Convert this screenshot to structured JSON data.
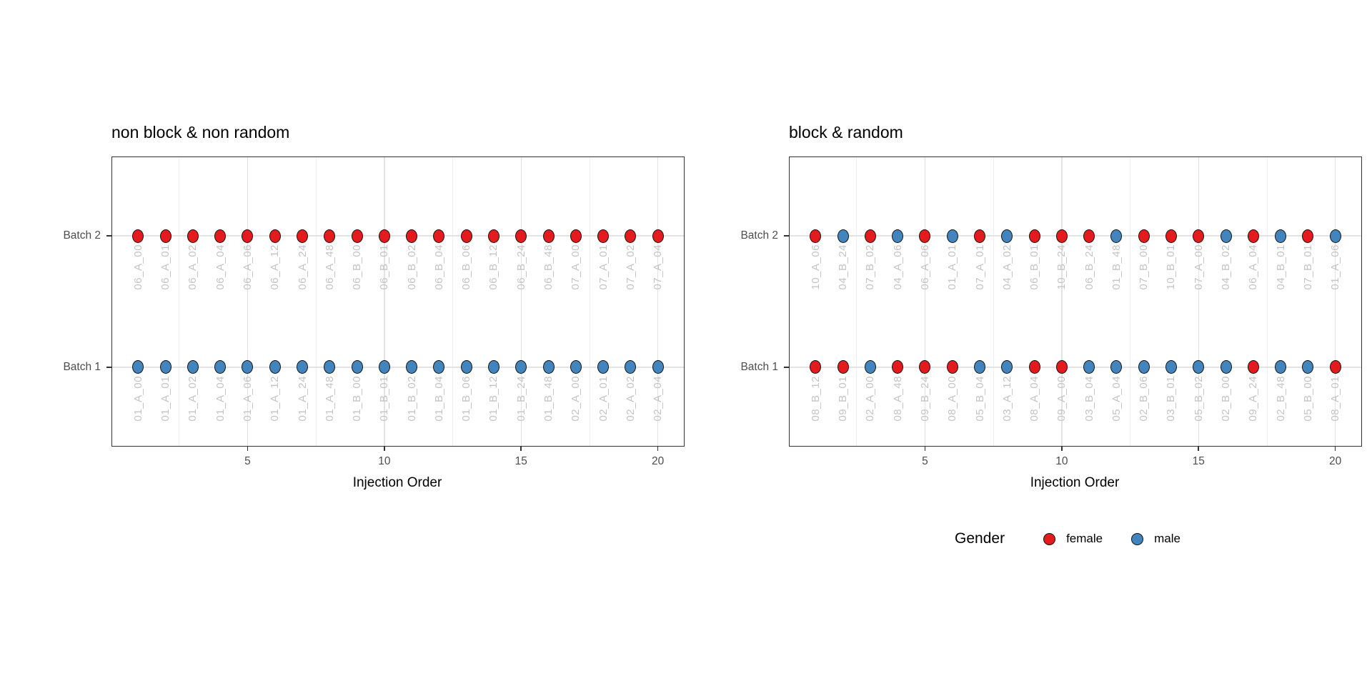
{
  "figure": {
    "background": "#ffffff",
    "colors": {
      "female": "#E41A1C",
      "male": "#4285BE",
      "sample_label": "#C4C4C4",
      "axis_text": "#4D4D4D",
      "axis_title": "#000000",
      "title_text": "#000000",
      "grid_major": "#E3E3E3",
      "grid_minor": "#EFEFEF",
      "panel_border": "#333333",
      "tick": "#333333",
      "point_outline": "#141414"
    },
    "x_axis": {
      "label": "Injection Order",
      "ticks": [
        5,
        10,
        15,
        20
      ]
    },
    "y_axis": {
      "categories": [
        "Batch 1",
        "Batch 2"
      ]
    },
    "legend": {
      "title": "Gender",
      "entries": [
        {
          "label": "female",
          "color_key": "female"
        },
        {
          "label": "male",
          "color_key": "male"
        }
      ]
    }
  },
  "chart_data": [
    {
      "type": "scatter",
      "title": "non block & non random",
      "xlabel": "Injection Order",
      "ylabel": "",
      "x_ticks": [
        5,
        10,
        15,
        20
      ],
      "x_minor_gridlines": [
        2.5,
        7.5,
        12.5,
        17.5
      ],
      "x_range": [
        1,
        20
      ],
      "y_categories": [
        "Batch 1",
        "Batch 2"
      ],
      "point_x_values": [
        1,
        2,
        3,
        4,
        5,
        6,
        7,
        8,
        9,
        10,
        11,
        12,
        13,
        14,
        15,
        16,
        17,
        18,
        19,
        20
      ],
      "rows": [
        {
          "y": "Batch 2",
          "sample_labels": [
            "06_A_00",
            "06_A_01",
            "06_A_02",
            "06_A_04",
            "06_A_06",
            "06_A_12",
            "06_A_24",
            "06_A_48",
            "06_B_00",
            "06_B_01",
            "06_B_02",
            "06_B_04",
            "06_B_06",
            "06_B_12",
            "06_B_24",
            "06_B_48",
            "07_A_00",
            "07_A_01",
            "07_A_02",
            "07_A_04"
          ],
          "genders": [
            "female",
            "female",
            "female",
            "female",
            "female",
            "female",
            "female",
            "female",
            "female",
            "female",
            "female",
            "female",
            "female",
            "female",
            "female",
            "female",
            "female",
            "female",
            "female",
            "female"
          ]
        },
        {
          "y": "Batch 1",
          "sample_labels": [
            "01_A_00",
            "01_A_01",
            "01_A_02",
            "01_A_04",
            "01_A_06",
            "01_A_12",
            "01_A_24",
            "01_A_48",
            "01_B_00",
            "01_B_01",
            "01_B_02",
            "01_B_04",
            "01_B_06",
            "01_B_12",
            "01_B_24",
            "01_B_48",
            "02_A_00",
            "02_A_01",
            "02_A_02",
            "02_A_04"
          ],
          "genders": [
            "male",
            "male",
            "male",
            "male",
            "male",
            "male",
            "male",
            "male",
            "male",
            "male",
            "male",
            "male",
            "male",
            "male",
            "male",
            "male",
            "male",
            "male",
            "male",
            "male"
          ]
        }
      ]
    },
    {
      "type": "scatter",
      "title": "block & random",
      "xlabel": "Injection Order",
      "ylabel": "",
      "x_ticks": [
        5,
        10,
        15,
        20
      ],
      "x_minor_gridlines": [
        2.5,
        7.5,
        12.5,
        17.5
      ],
      "x_range": [
        1,
        20
      ],
      "y_categories": [
        "Batch 1",
        "Batch 2"
      ],
      "point_x_values": [
        1,
        2,
        3,
        4,
        5,
        6,
        7,
        8,
        9,
        10,
        11,
        12,
        13,
        14,
        15,
        16,
        17,
        18,
        19,
        20
      ],
      "rows": [
        {
          "y": "Batch 2",
          "sample_labels": [
            "10_A_06",
            "04_B_24",
            "07_B_02",
            "04_A_06",
            "06_A_06",
            "01_A_01",
            "07_A_01",
            "04_A_02",
            "06_B_01",
            "10_B_24",
            "06_B_24",
            "01_B_48",
            "07_B_00",
            "10_B_01",
            "07_A_00",
            "04_B_02",
            "06_A_04",
            "04_B_01",
            "07_B_01",
            "01_A_06"
          ],
          "genders": [
            "female",
            "male",
            "female",
            "male",
            "female",
            "male",
            "female",
            "male",
            "female",
            "female",
            "female",
            "male",
            "female",
            "female",
            "female",
            "male",
            "female",
            "male",
            "female",
            "male"
          ]
        },
        {
          "y": "Batch 1",
          "sample_labels": [
            "08_B_12",
            "09_B_01",
            "02_A_00",
            "08_A_48",
            "09_B_24",
            "08_A_00",
            "05_B_04",
            "03_A_12",
            "08_A_04",
            "09_A_00",
            "03_B_04",
            "05_A_04",
            "02_B_06",
            "03_B_01",
            "05_B_02",
            "02_B_00",
            "09_A_24",
            "02_B_48",
            "05_B_00",
            "08_A_01"
          ],
          "genders": [
            "female",
            "female",
            "male",
            "female",
            "female",
            "female",
            "male",
            "male",
            "female",
            "female",
            "male",
            "male",
            "male",
            "male",
            "male",
            "male",
            "female",
            "male",
            "male",
            "female"
          ]
        }
      ]
    }
  ]
}
